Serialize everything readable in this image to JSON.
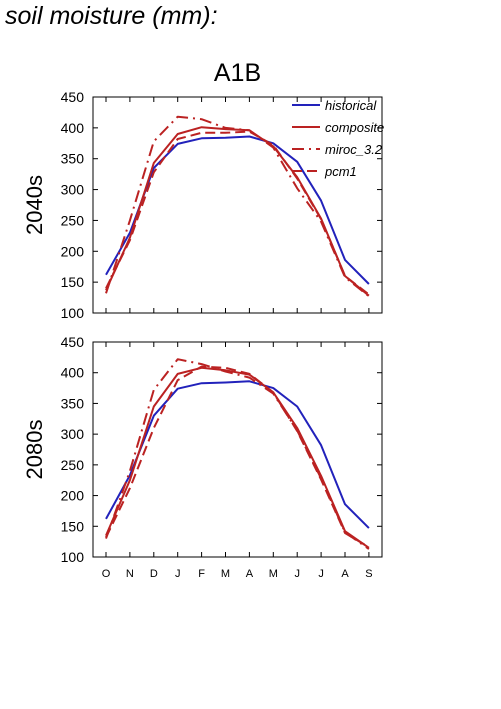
{
  "page": {
    "title": "soil moisture (mm):"
  },
  "colors": {
    "historical": "#2222bb",
    "future": "#bb2222"
  },
  "chart_data": [
    {
      "type": "line",
      "title": "A1B",
      "ylabel": "2040s",
      "categories": [
        "O",
        "N",
        "D",
        "J",
        "F",
        "M",
        "A",
        "M",
        "J",
        "J",
        "A",
        "S"
      ],
      "ylim": [
        100,
        450
      ],
      "yticks": [
        100,
        150,
        200,
        250,
        300,
        350,
        400,
        450
      ],
      "grid": false,
      "legend_placement": "top-right",
      "series": [
        {
          "name": "historical",
          "style": "solid",
          "color": "#2222bb",
          "values": [
            162,
            230,
            335,
            374,
            383,
            384,
            386,
            375,
            345,
            282,
            186,
            147
          ]
        },
        {
          "name": "composite",
          "style": "solid",
          "color": "#bb2222",
          "values": [
            137,
            222,
            343,
            390,
            401,
            398,
            396,
            370,
            320,
            253,
            160,
            128
          ]
        },
        {
          "name": "miroc_3.2",
          "style": "dashdot",
          "color": "#bb2222",
          "values": [
            132,
            250,
            378,
            418,
            414,
            400,
            396,
            368,
            302,
            248,
            158,
            127
          ]
        },
        {
          "name": "pcm1",
          "style": "dashed",
          "color": "#bb2222",
          "values": [
            140,
            218,
            328,
            382,
            392,
            392,
            394,
            372,
            318,
            252,
            160,
            130
          ]
        }
      ]
    },
    {
      "type": "line",
      "title": "",
      "ylabel": "2080s",
      "categories": [
        "O",
        "N",
        "D",
        "J",
        "F",
        "M",
        "A",
        "M",
        "J",
        "J",
        "A",
        "S"
      ],
      "ylim": [
        100,
        450
      ],
      "yticks": [
        100,
        150,
        200,
        250,
        300,
        350,
        400,
        450
      ],
      "grid": false,
      "series": [
        {
          "name": "historical",
          "style": "solid",
          "color": "#2222bb",
          "values": [
            162,
            233,
            330,
            374,
            383,
            384,
            386,
            375,
            345,
            282,
            186,
            147
          ]
        },
        {
          "name": "composite",
          "style": "solid",
          "color": "#bb2222",
          "values": [
            135,
            225,
            345,
            398,
            408,
            404,
            397,
            368,
            310,
            232,
            142,
            115
          ]
        },
        {
          "name": "miroc_3.2",
          "style": "dashdot",
          "color": "#bb2222",
          "values": [
            130,
            240,
            372,
            422,
            414,
            402,
            392,
            366,
            306,
            228,
            140,
            113
          ]
        },
        {
          "name": "pcm1",
          "style": "dashed",
          "color": "#bb2222",
          "values": [
            132,
            212,
            310,
            388,
            410,
            408,
            398,
            368,
            305,
            226,
            139,
            116
          ]
        }
      ]
    }
  ]
}
